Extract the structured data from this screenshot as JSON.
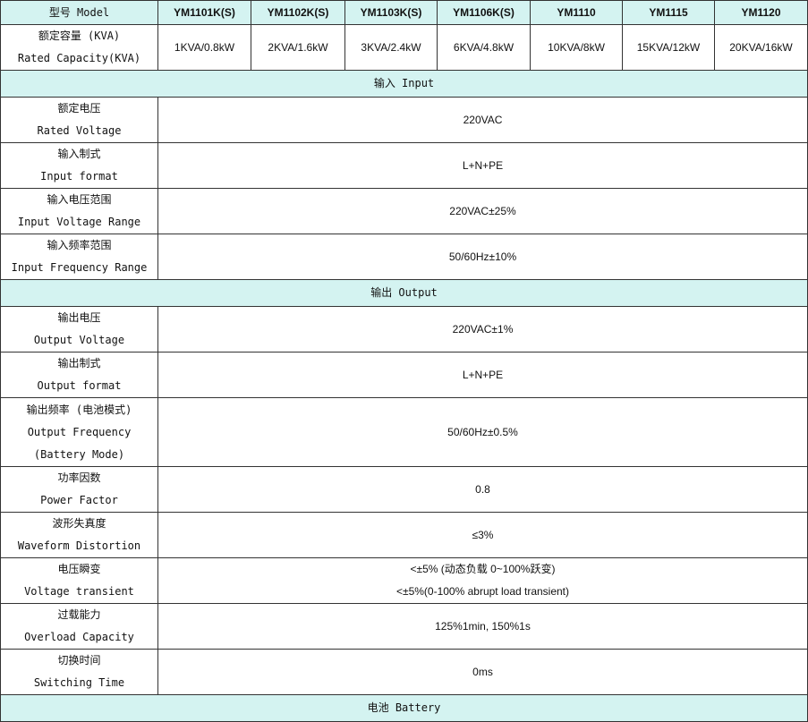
{
  "header": {
    "label": "型号 Model",
    "models": [
      "YM1101K(S)",
      "YM1102K(S)",
      "YM1103K(S)",
      "YM1106K(S)",
      "YM1110",
      "YM1115",
      "YM1120"
    ]
  },
  "capacity": {
    "label_cn": "额定容量 (KVA)",
    "label_en": "Rated Capacity(KVA)",
    "values": [
      "1KVA/0.8kW",
      "2KVA/1.6kW",
      "3KVA/2.4kW",
      "6KVA/4.8kW",
      "10KVA/8kW",
      "15KVA/12kW",
      "20KVA/16kW"
    ]
  },
  "sections": {
    "input": "输入 Input",
    "output": "输出 Output",
    "battery": "电池 Battery"
  },
  "input_rows": [
    {
      "cn": "额定电压",
      "en": "Rated Voltage",
      "value": "220VAC"
    },
    {
      "cn": "输入制式",
      "en": "Input format",
      "value": "L+N+PE"
    },
    {
      "cn": "输入电压范围",
      "en": "Input Voltage Range",
      "value": "220VAC±25%"
    },
    {
      "cn": "输入频率范围",
      "en": "Input Frequency Range",
      "value": "50/60Hz±10%"
    }
  ],
  "output_rows": [
    {
      "cn": "输出电压",
      "en": "Output Voltage",
      "value": "220VAC±1%"
    },
    {
      "cn": "输出制式",
      "en": "Output format",
      "value": "L+N+PE"
    },
    {
      "cn": "输出频率 (电池模式)",
      "en": "Output Frequency",
      "en2": "(Battery Mode)",
      "value": "50/60Hz±0.5%"
    },
    {
      "cn": "功率因数",
      "en": "Power Factor",
      "value": "0.8"
    },
    {
      "cn": "波形失真度",
      "en": "Waveform Distortion",
      "value": "≤3%"
    },
    {
      "cn": "电压瞬变",
      "en": "Voltage transient",
      "value": "<±5% (动态负载 0~100%跃变)",
      "value2": "<±5%(0-100% abrupt load transient)"
    },
    {
      "cn": "过载能力",
      "en": "Overload Capacity",
      "value": "125%1min, 150%1s"
    },
    {
      "cn": "切换时间",
      "en": "Switching Time",
      "value": "0ms"
    }
  ]
}
